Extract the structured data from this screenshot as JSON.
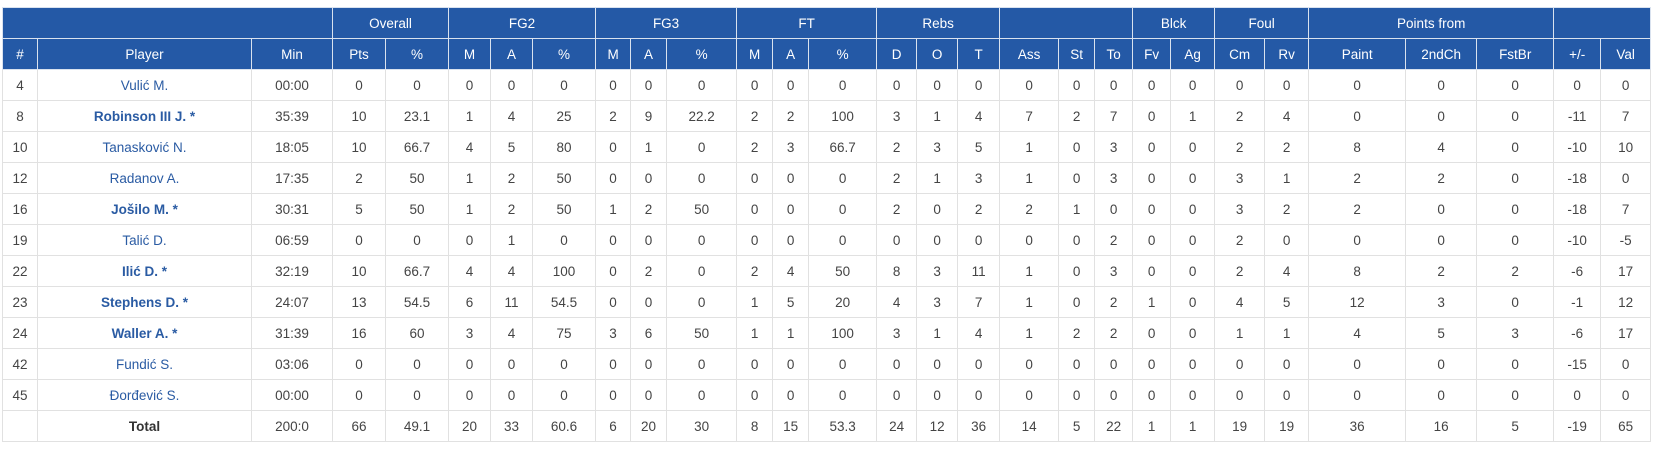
{
  "table": {
    "groups": [
      {
        "columns": [
          "#",
          "Player",
          "Min"
        ]
      },
      {
        "label": "Overall",
        "columns": [
          "Pts",
          "%"
        ]
      },
      {
        "label": "FG2",
        "columns": [
          "M",
          "A",
          "%"
        ]
      },
      {
        "label": "FG3",
        "columns": [
          "M",
          "A",
          "%"
        ]
      },
      {
        "label": "FT",
        "columns": [
          "M",
          "A",
          "%"
        ]
      },
      {
        "label": "Rebs",
        "columns": [
          "D",
          "O",
          "T"
        ]
      },
      {
        "columns": [
          "Ass",
          "St",
          "To"
        ]
      },
      {
        "label": "Blck",
        "columns": [
          "Fv",
          "Ag"
        ]
      },
      {
        "label": "Foul",
        "columns": [
          "Cm",
          "Rv"
        ]
      },
      {
        "label": "Points from",
        "columns": [
          "Paint",
          "2ndCh",
          "FstBr"
        ]
      },
      {
        "columns": [
          "+/-",
          "Val"
        ]
      }
    ],
    "rows": [
      [
        4,
        "Vulić M.",
        "00:00",
        0,
        0,
        0,
        0,
        0,
        0,
        0,
        0,
        0,
        0,
        0,
        0,
        0,
        0,
        0,
        0,
        0,
        0,
        0,
        0,
        0,
        0,
        0,
        0,
        0,
        0
      ],
      [
        8,
        "Robinson III J. *",
        "35:39",
        10,
        23.1,
        1,
        4,
        25,
        2,
        9,
        22.2,
        2,
        2,
        100,
        3,
        1,
        4,
        7,
        2,
        7,
        0,
        1,
        2,
        4,
        0,
        0,
        0,
        -11,
        7
      ],
      [
        10,
        "Tanasković N.",
        "18:05",
        10,
        66.7,
        4,
        5,
        80,
        0,
        1,
        0,
        2,
        3,
        66.7,
        2,
        3,
        5,
        1,
        0,
        3,
        0,
        0,
        2,
        2,
        8,
        4,
        0,
        -10,
        10
      ],
      [
        12,
        "Radanov A.",
        "17:35",
        2,
        50,
        1,
        2,
        50,
        0,
        0,
        0,
        0,
        0,
        0,
        2,
        1,
        3,
        1,
        0,
        3,
        0,
        0,
        3,
        1,
        2,
        2,
        0,
        -18,
        0
      ],
      [
        16,
        "Jošilo M. *",
        "30:31",
        5,
        50,
        1,
        2,
        50,
        1,
        2,
        50,
        0,
        0,
        0,
        2,
        0,
        2,
        2,
        1,
        0,
        0,
        0,
        3,
        2,
        2,
        0,
        0,
        -18,
        7
      ],
      [
        19,
        "Talić D.",
        "06:59",
        0,
        0,
        0,
        1,
        0,
        0,
        0,
        0,
        0,
        0,
        0,
        0,
        0,
        0,
        0,
        0,
        2,
        0,
        0,
        2,
        0,
        0,
        0,
        0,
        -10,
        -5
      ],
      [
        22,
        "Ilić D. *",
        "32:19",
        10,
        66.7,
        4,
        4,
        100,
        0,
        2,
        0,
        2,
        4,
        50,
        8,
        3,
        11,
        1,
        0,
        3,
        0,
        0,
        2,
        4,
        8,
        2,
        2,
        -6,
        17
      ],
      [
        23,
        "Stephens D. *",
        "24:07",
        13,
        54.5,
        6,
        11,
        54.5,
        0,
        0,
        0,
        1,
        5,
        20,
        4,
        3,
        7,
        1,
        0,
        2,
        1,
        0,
        4,
        5,
        12,
        3,
        0,
        -1,
        12
      ],
      [
        24,
        "Waller A. *",
        "31:39",
        16,
        60,
        3,
        4,
        75,
        3,
        6,
        50,
        1,
        1,
        100,
        3,
        1,
        4,
        1,
        2,
        2,
        0,
        0,
        1,
        1,
        4,
        5,
        3,
        -6,
        17
      ],
      [
        42,
        "Fundić S.",
        "03:06",
        0,
        0,
        0,
        0,
        0,
        0,
        0,
        0,
        0,
        0,
        0,
        0,
        0,
        0,
        0,
        0,
        0,
        0,
        0,
        0,
        0,
        0,
        0,
        0,
        -15,
        0
      ],
      [
        45,
        "Đorđević S.",
        "00:00",
        0,
        0,
        0,
        0,
        0,
        0,
        0,
        0,
        0,
        0,
        0,
        0,
        0,
        0,
        0,
        0,
        0,
        0,
        0,
        0,
        0,
        0,
        0,
        0,
        0,
        0
      ]
    ],
    "total": {
      "label": "Total",
      "values": [
        "200:0",
        66,
        49.1,
        20,
        33,
        60.6,
        6,
        20,
        30,
        8,
        15,
        53.3,
        24,
        12,
        36,
        14,
        5,
        22,
        1,
        1,
        19,
        19,
        36,
        16,
        5,
        -19,
        65
      ]
    }
  }
}
